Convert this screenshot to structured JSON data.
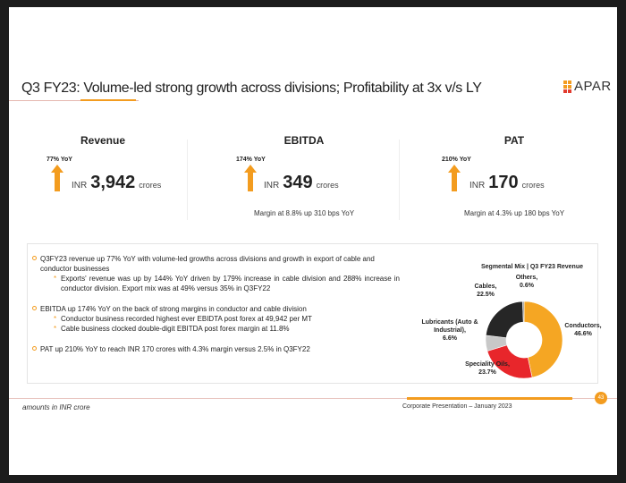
{
  "title": "Q3 FY23:  Volume-led strong growth across divisions; Profitability at 3x v/s LY",
  "logo": {
    "text": "APAR"
  },
  "metrics": [
    {
      "label": "Revenue",
      "yoy": "77% YoY",
      "currency": "INR",
      "value": "3,942",
      "unit": "crores",
      "margin": ""
    },
    {
      "label": "EBITDA",
      "yoy": "174% YoY",
      "currency": "INR",
      "value": "349",
      "unit": "crores",
      "margin": "Margin at 8.8% up 310 bps YoY"
    },
    {
      "label": "PAT",
      "yoy": "210% YoY",
      "currency": "INR",
      "value": "170",
      "unit": "crores",
      "margin": "Margin at 4.3% up 180 bps YoY"
    }
  ],
  "bullets": {
    "b1": "Q3FY23 revenue up 77% YoY with volume-led growths across divisions and growth in export of cable and conductor businesses",
    "b1a": "Exports' revenue was up by 144% YoY driven by 179% increase in cable division and 288% increase in conductor division. Export mix was at 49% versus 35% in Q3FY22",
    "b2": "EBITDA up 174% YoY on the back of strong margins in conductor and cable division",
    "b2a": "Conductor business recorded highest ever EBIDTA post forex at 49,942 per MT",
    "b2b": "Cable business clocked double-digit EBITDA post forex margin at 11.8%",
    "b3": "PAT up 210% YoY to reach INR 170 crores with 4.3% margin versus 2.5% in Q3FY22"
  },
  "chart_data": {
    "type": "pie",
    "title": "Segmental Mix |  Q3 FY23 Revenue",
    "slices": [
      {
        "name": "Conductors,",
        "label": "46.6%",
        "value": 46.6,
        "color": "#f5a623"
      },
      {
        "name": "Speciality Oils,",
        "label": "23.7%",
        "value": 23.7,
        "color": "#e8262b"
      },
      {
        "name": "Lubricants (Auto & Industrial),",
        "label": "6.6%",
        "value": 6.6,
        "color": "#c8c8c8"
      },
      {
        "name": "Cables,",
        "label": "22.5%",
        "value": 22.5,
        "color": "#262626"
      },
      {
        "name": "Others,",
        "label": "0.6%",
        "value": 0.6,
        "color": "#8a8a8a"
      }
    ]
  },
  "footer": {
    "note": "amounts in INR crore",
    "presentation": "Corporate Presentation  –  January 2023",
    "page": "43"
  },
  "colors": {
    "accent": "#f39c1f",
    "red": "#e23b2e"
  }
}
